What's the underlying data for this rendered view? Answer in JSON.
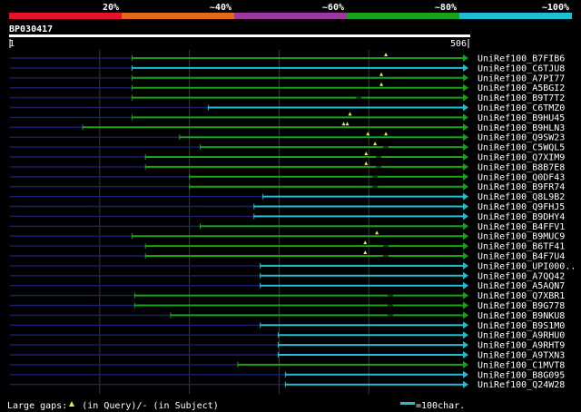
{
  "query_id": "BP030417",
  "query_start": "1",
  "query_end": "506",
  "scale": [
    {
      "label": "20%",
      "color": "#e8102a"
    },
    {
      "label": "~40%",
      "color": "#e06a19"
    },
    {
      "label": "~60%",
      "color": "#9c39a1"
    },
    {
      "label": "~80%",
      "color": "#19a219"
    },
    {
      "label": "~100%",
      "color": "#1fbfcf"
    }
  ],
  "colors": {
    "green": "#19a219",
    "cyan": "#1fbfcf",
    "navy": "#1a1f6e",
    "grid": "#3a3a3a"
  },
  "hits": [
    {
      "name": "UniRef100_B7FIB6",
      "start": 137,
      "end": 506,
      "color": "green",
      "gap_q": [
        420
      ],
      "gap_s": []
    },
    {
      "name": "UniRef100_C6TJU8",
      "start": 137,
      "end": 506,
      "color": "cyan",
      "gap_q": [],
      "gap_s": []
    },
    {
      "name": "UniRef100_A7PI77",
      "start": 137,
      "end": 506,
      "color": "green",
      "gap_q": [
        415
      ],
      "gap_s": []
    },
    {
      "name": "UniRef100_A5BGI2",
      "start": 137,
      "end": 506,
      "color": "green",
      "gap_q": [
        415
      ],
      "gap_s": []
    },
    {
      "name": "UniRef100_B9T7T2",
      "start": 137,
      "end": 506,
      "color": "green",
      "gap_q": [],
      "gap_s": [
        390
      ]
    },
    {
      "name": "UniRef100_C6TMZ0",
      "start": 222,
      "end": 506,
      "color": "cyan",
      "gap_q": [],
      "gap_s": []
    },
    {
      "name": "UniRef100_B9HU45",
      "start": 137,
      "end": 506,
      "color": "green",
      "gap_q": [
        380
      ],
      "gap_s": []
    },
    {
      "name": "UniRef100_B9HLN3",
      "start": 82,
      "end": 506,
      "color": "green",
      "gap_q": [
        373,
        377
      ],
      "gap_s": []
    },
    {
      "name": "UniRef100_Q9SW23",
      "start": 190,
      "end": 506,
      "color": "green",
      "gap_q": [
        400,
        420
      ],
      "gap_s": []
    },
    {
      "name": "UniRef100_C5WQL5",
      "start": 213,
      "end": 506,
      "color": "green",
      "gap_q": [
        408
      ],
      "gap_s": [
        420
      ]
    },
    {
      "name": "UniRef100_Q7XIM9",
      "start": 152,
      "end": 506,
      "color": "green",
      "gap_q": [
        398
      ],
      "gap_s": [
        412
      ]
    },
    {
      "name": "UniRef100_B8B7E8",
      "start": 152,
      "end": 506,
      "color": "green",
      "gap_q": [
        398
      ],
      "gap_s": [
        412
      ]
    },
    {
      "name": "UniRef100_Q0DF43",
      "start": 201,
      "end": 506,
      "color": "green",
      "gap_q": [],
      "gap_s": [
        408
      ]
    },
    {
      "name": "UniRef100_B9FR74",
      "start": 201,
      "end": 506,
      "color": "green",
      "gap_q": [],
      "gap_s": [
        408
      ]
    },
    {
      "name": "UniRef100_Q8L9B2",
      "start": 283,
      "end": 506,
      "color": "cyan",
      "gap_q": [],
      "gap_s": []
    },
    {
      "name": "UniRef100_Q9FHJ5",
      "start": 273,
      "end": 506,
      "color": "cyan",
      "gap_q": [],
      "gap_s": []
    },
    {
      "name": "UniRef100_B9DHY4",
      "start": 273,
      "end": 506,
      "color": "cyan",
      "gap_q": [],
      "gap_s": []
    },
    {
      "name": "UniRef100_B4FFV1",
      "start": 213,
      "end": 506,
      "color": "green",
      "gap_q": [],
      "gap_s": []
    },
    {
      "name": "UniRef100_B9MUC9",
      "start": 137,
      "end": 506,
      "color": "green",
      "gap_q": [
        410
      ],
      "gap_s": []
    },
    {
      "name": "UniRef100_B6TF41",
      "start": 152,
      "end": 506,
      "color": "green",
      "gap_q": [
        397
      ],
      "gap_s": [
        420
      ]
    },
    {
      "name": "UniRef100_B4F7U4",
      "start": 152,
      "end": 506,
      "color": "green",
      "gap_q": [
        397
      ],
      "gap_s": [
        420
      ]
    },
    {
      "name": "UniRef100_UPI000..",
      "start": 280,
      "end": 506,
      "color": "cyan",
      "gap_q": [],
      "gap_s": []
    },
    {
      "name": "UniRef100_A7QQ42",
      "start": 280,
      "end": 506,
      "color": "cyan",
      "gap_q": [],
      "gap_s": []
    },
    {
      "name": "UniRef100_A5AQN7",
      "start": 280,
      "end": 506,
      "color": "cyan",
      "gap_q": [],
      "gap_s": []
    },
    {
      "name": "UniRef100_Q7XBR1",
      "start": 140,
      "end": 506,
      "color": "green",
      "gap_q": [],
      "gap_s": [
        425
      ]
    },
    {
      "name": "UniRef100_B9G778",
      "start": 140,
      "end": 506,
      "color": "green",
      "gap_q": [],
      "gap_s": [
        425
      ]
    },
    {
      "name": "UniRef100_B9NKU8",
      "start": 180,
      "end": 506,
      "color": "green",
      "gap_q": [],
      "gap_s": [
        425
      ]
    },
    {
      "name": "UniRef100_B9S1M0",
      "start": 280,
      "end": 506,
      "color": "cyan",
      "gap_q": [],
      "gap_s": []
    },
    {
      "name": "UniRef100_A9RHU0",
      "start": 300,
      "end": 506,
      "color": "cyan",
      "gap_q": [],
      "gap_s": []
    },
    {
      "name": "UniRef100_A9RHT9",
      "start": 300,
      "end": 506,
      "color": "cyan",
      "gap_q": [],
      "gap_s": []
    },
    {
      "name": "UniRef100_A9TXN3",
      "start": 300,
      "end": 506,
      "color": "cyan",
      "gap_q": [],
      "gap_s": []
    },
    {
      "name": "UniRef100_C1MVT8",
      "start": 255,
      "end": 506,
      "color": "green",
      "gap_q": [],
      "gap_s": []
    },
    {
      "name": "UniRef100_B8G095",
      "start": 308,
      "end": 506,
      "color": "cyan",
      "gap_q": [],
      "gap_s": []
    },
    {
      "name": "UniRef100_Q24W28",
      "start": 308,
      "end": 506,
      "color": "cyan",
      "gap_q": [],
      "gap_s": []
    }
  ],
  "footer": {
    "gaps_label": "Large gaps:",
    "gaps_query": "(in Query)/",
    "gaps_dash": "-",
    "gaps_subject": " (in Subject)",
    "scale_label": "=100char."
  }
}
